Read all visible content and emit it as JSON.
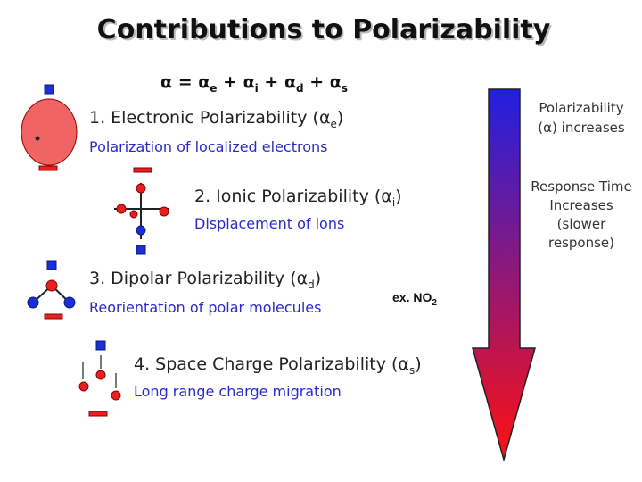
{
  "title": "Contributions to Polarizability",
  "equation": {
    "lhs": "α",
    "eq": "=",
    "op": "+",
    "terms": [
      {
        "symbol": "α",
        "sub": "e"
      },
      {
        "symbol": "α",
        "sub": "i"
      },
      {
        "symbol": "α",
        "sub": "d"
      },
      {
        "symbol": "α",
        "sub": "s"
      }
    ]
  },
  "items": [
    {
      "heading": {
        "prefix": "1. Electronic Polarizability (",
        "symbol": "α",
        "sub": "e",
        "suffix": ")"
      },
      "description": "Polarization of localized electrons"
    },
    {
      "heading": {
        "prefix": "2. Ionic Polarizability (",
        "symbol": "α",
        "sub": "i",
        "suffix": ")"
      },
      "description": "Displacement of ions"
    },
    {
      "heading": {
        "prefix": "3. Dipolar Polarizability (",
        "symbol": "α",
        "sub": "d",
        "suffix": ")"
      },
      "description": "Reorientation of polar molecules",
      "example": {
        "text": "ex. NO",
        "sub": "2"
      }
    },
    {
      "heading": {
        "prefix": "4. Space Charge Polarizability (",
        "symbol": "α",
        "sub": "s",
        "suffix": ")"
      },
      "description": "Long range charge migration"
    }
  ],
  "side": {
    "polarizability": [
      "Polarizability",
      "(α) increases"
    ],
    "response": [
      "Response Time",
      "Increases",
      "(slower",
      "response)"
    ]
  }
}
